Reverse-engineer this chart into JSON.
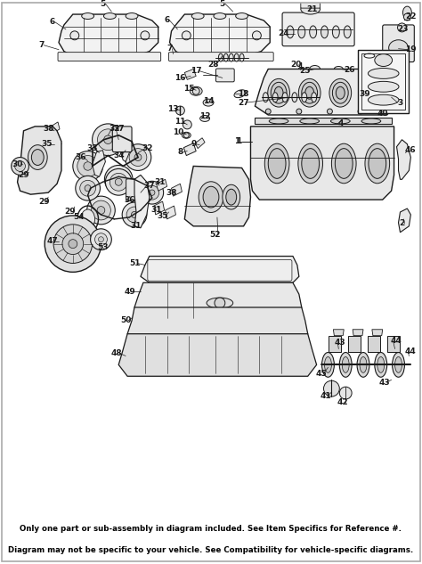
{
  "fig_width": 4.74,
  "fig_height": 6.33,
  "dpi": 100,
  "bg_color": "#ffffff",
  "line_color": "#1a1a1a",
  "fill_color": "#f0f0f0",
  "banner_bg": "#e07800",
  "banner_text_line1": "Only one part or sub-assembly in diagram included. See Item Specifics for Reference #.",
  "banner_text_line2": "Diagram may not be specific to your vehicle. See Compatibility for vehicle-specific diagrams.",
  "banner_font_size": 6.2,
  "outer_border_color": "#aaaaaa"
}
